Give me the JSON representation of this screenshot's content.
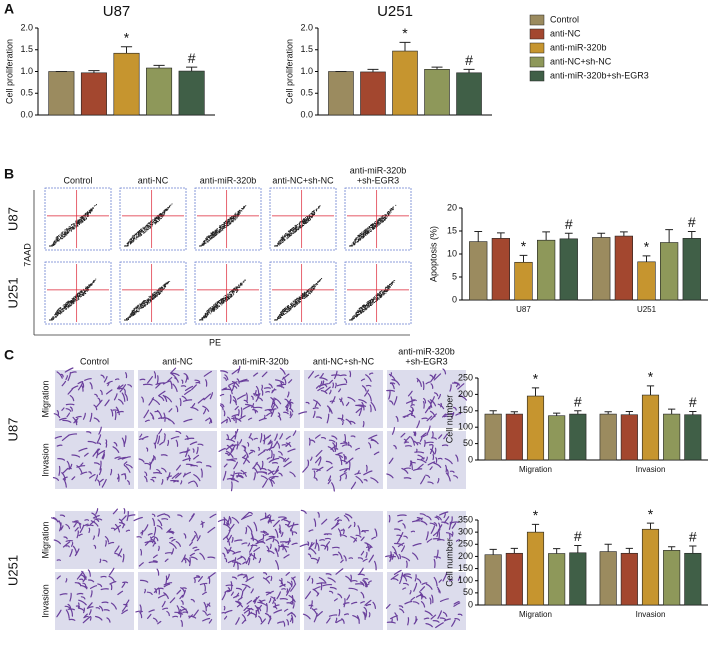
{
  "figure": {
    "panels": [
      "A",
      "B",
      "C"
    ],
    "flow": {
      "columns": [
        [
          "Control"
        ],
        [
          "anti-NC"
        ],
        [
          "anti-miR-320b"
        ],
        [
          "anti-NC+sh-NC"
        ],
        [
          "anti-miR-320b",
          "+sh-EGR3"
        ]
      ],
      "rows": [
        "U87",
        "U251"
      ],
      "y_label": "7AAD",
      "x_label": "PE"
    },
    "transwell": {
      "columns": [
        [
          "Control"
        ],
        [
          "anti-NC"
        ],
        [
          "anti-miR-320b"
        ],
        [
          "anti-NC+sh-NC"
        ],
        [
          "anti-miR-320b",
          "+sh-EGR3"
        ]
      ],
      "rows": [
        "U87",
        "U251"
      ],
      "assays": [
        "Migration",
        "Invasion"
      ]
    }
  },
  "chart_data": [
    {
      "type": "bar",
      "title": "U87",
      "ylabel": "Cell proliferation",
      "categories": [
        null
      ],
      "ylim": [
        0,
        2
      ],
      "yticks": [
        {
          "value": 0,
          "label": "0.0"
        },
        0.5,
        {
          "value": 1,
          "label": "1.0"
        },
        1.5,
        {
          "value": 2,
          "label": "2.0"
        }
      ],
      "series": [
        {
          "name": "Control",
          "color": "#9b8b5f",
          "values": [
            1.0
          ],
          "errors": [
            0
          ]
        },
        {
          "name": "anti-NC",
          "color": "#a3472f",
          "values": [
            0.97
          ],
          "errors": [
            0.05
          ]
        },
        {
          "name": "anti-miR-320b",
          "color": "#c6952f",
          "values": [
            1.42
          ],
          "errors": [
            0.15
          ],
          "annotation": "*"
        },
        {
          "name": "anti-NC+sh-NC",
          "color": "#8e985a",
          "values": [
            1.08
          ],
          "errors": [
            0.06
          ]
        },
        {
          "name": "anti-miR-320b+sh-EGR3",
          "color": "#405f47",
          "values": [
            1.01
          ],
          "errors": [
            0.09
          ],
          "annotation": "#"
        }
      ]
    },
    {
      "type": "bar",
      "title": "U251",
      "ylabel": "Cell proliferation",
      "categories": [
        null
      ],
      "ylim": [
        0,
        2
      ],
      "yticks": [
        {
          "value": 0,
          "label": "0.0"
        },
        0.5,
        {
          "value": 1,
          "label": "1.0"
        },
        1.5,
        {
          "value": 2,
          "label": "2.0"
        }
      ],
      "series": [
        {
          "color": "#9b8b5f",
          "values": [
            1.0
          ],
          "errors": [
            0
          ]
        },
        {
          "color": "#a3472f",
          "values": [
            0.99
          ],
          "errors": [
            0.06
          ]
        },
        {
          "color": "#c6952f",
          "values": [
            1.47
          ],
          "errors": [
            0.2
          ],
          "annotation": "*"
        },
        {
          "color": "#8e985a",
          "values": [
            1.05
          ],
          "errors": [
            0.05
          ]
        },
        {
          "color": "#405f47",
          "values": [
            0.97
          ],
          "errors": [
            0.08
          ],
          "annotation": "#"
        }
      ]
    },
    {
      "type": "bar",
      "ylabel": "Apoptosis (%)",
      "categories": [
        "U87",
        "U251"
      ],
      "ylim": [
        0,
        20
      ],
      "yticks": [
        0,
        5,
        10,
        15,
        20
      ],
      "series": [
        {
          "color": "#9b8b5f",
          "values": [
            12.7,
            13.6
          ],
          "errors": [
            2.2,
            0.9
          ]
        },
        {
          "color": "#a3472f",
          "values": [
            13.4,
            13.9
          ],
          "errors": [
            1.2,
            0.9
          ]
        },
        {
          "color": "#c6952f",
          "values": [
            8.2,
            8.3
          ],
          "errors": [
            1.5,
            1.3
          ],
          "annotation": "*"
        },
        {
          "color": "#8e985a",
          "values": [
            13.0,
            12.5
          ],
          "errors": [
            1.8,
            2.8
          ]
        },
        {
          "color": "#405f47",
          "values": [
            13.3,
            13.4
          ],
          "errors": [
            1.2,
            1.5
          ],
          "annotation": "#"
        }
      ]
    },
    {
      "type": "bar",
      "ylabel": "Cell number",
      "categories": [
        "Migration",
        "Invasion"
      ],
      "ylim": [
        0,
        250
      ],
      "yticks": [
        0,
        50,
        100,
        150,
        200,
        250
      ],
      "series": [
        {
          "color": "#9b8b5f",
          "values": [
            140,
            140
          ],
          "errors": [
            10,
            7
          ]
        },
        {
          "color": "#a3472f",
          "values": [
            140,
            138
          ],
          "errors": [
            7,
            10
          ]
        },
        {
          "color": "#c6952f",
          "values": [
            195,
            198
          ],
          "errors": [
            25,
            28
          ],
          "annotation": "*"
        },
        {
          "color": "#8e985a",
          "values": [
            135,
            140
          ],
          "errors": [
            8,
            15
          ]
        },
        {
          "color": "#405f47",
          "values": [
            140,
            138
          ],
          "errors": [
            10,
            10
          ],
          "annotation": "#"
        }
      ]
    },
    {
      "type": "bar",
      "ylabel": "Cell number",
      "categories": [
        "Migration",
        "Invasion"
      ],
      "ylim": [
        0,
        350
      ],
      "yticks": [
        0,
        50,
        100,
        150,
        200,
        250,
        300,
        350
      ],
      "series": [
        {
          "color": "#9b8b5f",
          "values": [
            207,
            220
          ],
          "errors": [
            22,
            30
          ]
        },
        {
          "color": "#a3472f",
          "values": [
            213,
            213
          ],
          "errors": [
            20,
            20
          ]
        },
        {
          "color": "#c6952f",
          "values": [
            300,
            312
          ],
          "errors": [
            32,
            25
          ],
          "annotation": "*"
        },
        {
          "color": "#8e985a",
          "values": [
            212,
            225
          ],
          "errors": [
            20,
            15
          ]
        },
        {
          "color": "#405f47",
          "values": [
            215,
            213
          ],
          "errors": [
            30,
            30
          ],
          "annotation": "#"
        }
      ]
    }
  ]
}
